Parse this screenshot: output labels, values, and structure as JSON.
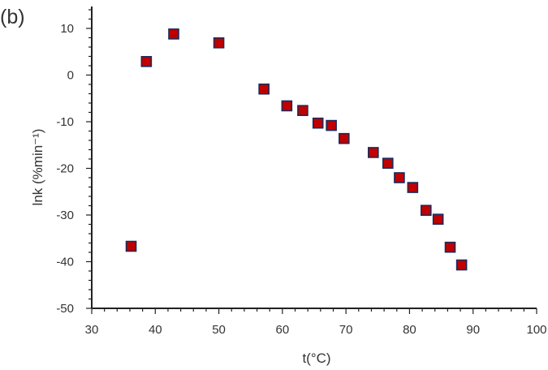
{
  "panel_label": "(b)",
  "chart_data": {
    "type": "scatter",
    "title": "",
    "xlabel": "t(°C)",
    "ylabel": "lnk (%min⁻¹)",
    "xlim": [
      30,
      100
    ],
    "ylim": [
      -50,
      15
    ],
    "x_ticks": [
      30,
      40,
      50,
      60,
      70,
      80,
      90,
      100
    ],
    "y_ticks": [
      -50,
      -40,
      -30,
      -20,
      -10,
      0,
      10
    ],
    "x_tick_labels": [
      "30",
      "40",
      "50",
      "60",
      "70",
      "80",
      "90",
      "100"
    ],
    "y_tick_labels": [
      "-50",
      "-40",
      "-30",
      "-20",
      "-10",
      "0",
      "10"
    ],
    "grid": false,
    "legend": "none",
    "marker": {
      "shape": "square",
      "fill": "#c00000",
      "edge": "#1f2a5a"
    },
    "series": [
      {
        "x": [
          36.2,
          38.6,
          42.9,
          50.0,
          57.1,
          60.7,
          63.2,
          65.6,
          67.7,
          69.7,
          74.3,
          76.6,
          78.4,
          80.5,
          82.6,
          84.5,
          86.4,
          88.2
        ],
        "y": [
          -36.7,
          2.9,
          8.8,
          6.9,
          -3.0,
          -6.6,
          -7.6,
          -10.3,
          -10.8,
          -13.6,
          -16.6,
          -18.9,
          -22.0,
          -24.1,
          -29.0,
          -30.9,
          -36.9,
          -40.7
        ]
      }
    ]
  }
}
